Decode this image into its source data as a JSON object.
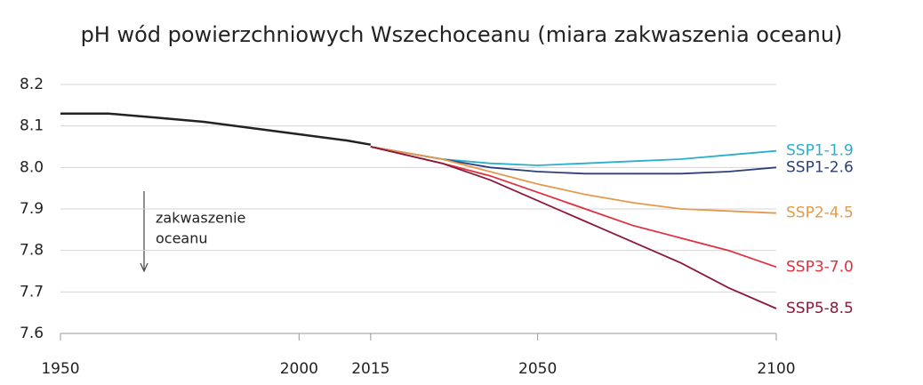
{
  "chart_data": {
    "type": "line",
    "title": "pH wód powierzchniowych Wszechoceanu (miara zakwaszenia oceanu)",
    "annotation": [
      "zakwaszenie",
      "oceanu"
    ],
    "x": [
      1950,
      1960,
      1970,
      1980,
      1990,
      2000,
      2010,
      2015,
      2030,
      2040,
      2050,
      2060,
      2070,
      2080,
      2090,
      2100
    ],
    "series": [
      {
        "name": null,
        "color": "#222222",
        "values": [
          8.13,
          8.13,
          8.12,
          8.11,
          8.095,
          8.08,
          8.065,
          8.055,
          null,
          null,
          null,
          null,
          null,
          null,
          null,
          null
        ]
      },
      {
        "name": "SSP1-1.9",
        "color": "#2aaed0",
        "values": [
          null,
          null,
          null,
          null,
          null,
          null,
          null,
          8.05,
          8.02,
          8.01,
          8.005,
          8.01,
          8.015,
          8.02,
          8.03,
          8.04
        ]
      },
      {
        "name": "SSP1-2.6",
        "color": "#2d3f7a",
        "values": [
          null,
          null,
          null,
          null,
          null,
          null,
          null,
          8.05,
          8.02,
          8.0,
          7.99,
          7.985,
          7.985,
          7.985,
          7.99,
          8.0
        ]
      },
      {
        "name": "SSP2-4.5",
        "color": "#e49a4c",
        "values": [
          null,
          null,
          null,
          null,
          null,
          null,
          null,
          8.05,
          8.02,
          7.99,
          7.96,
          7.935,
          7.915,
          7.9,
          7.895,
          7.89
        ]
      },
      {
        "name": "SSP3-7.0",
        "color": "#e0303f",
        "values": [
          null,
          null,
          null,
          null,
          null,
          null,
          null,
          8.05,
          8.01,
          7.98,
          7.94,
          7.9,
          7.86,
          7.83,
          7.8,
          7.76
        ]
      },
      {
        "name": "SSP5-8.5",
        "color": "#8b1a3a",
        "values": [
          null,
          null,
          null,
          null,
          null,
          null,
          null,
          8.05,
          8.01,
          7.97,
          7.92,
          7.87,
          7.82,
          7.77,
          7.71,
          7.66
        ]
      }
    ],
    "xlim": [
      1950,
      2100
    ],
    "xticks": [
      1950,
      2000,
      2015,
      2050,
      2100
    ],
    "ylim": [
      7.6,
      8.2
    ],
    "yticks": [
      8.2,
      8.1,
      {
        "value": 8,
        "label": "8.0"
      },
      7.9,
      7.8,
      7.7,
      7.6
    ],
    "grid": true
  }
}
